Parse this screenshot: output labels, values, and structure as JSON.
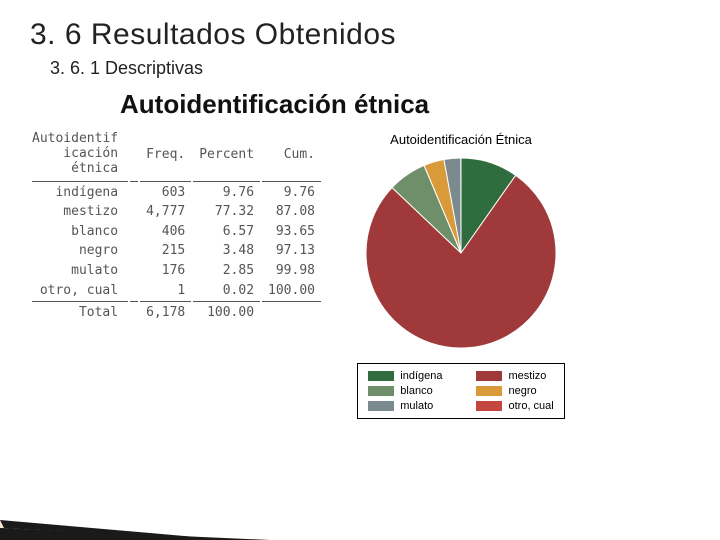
{
  "headings": {
    "h1": "3. 6 Resultados Obtenidos",
    "h2": "3. 6. 1 Descriptivas",
    "h3": "Autoidentificación étnica"
  },
  "table": {
    "var_label_lines": [
      "Autoidentif",
      "icación",
      "étnica"
    ],
    "col_headers": [
      "Freq.",
      "Percent",
      "Cum."
    ],
    "rows": [
      {
        "label": "indígena",
        "freq": "603",
        "pct": "9.76",
        "cum": "9.76"
      },
      {
        "label": "mestizo",
        "freq": "4,777",
        "pct": "77.32",
        "cum": "87.08"
      },
      {
        "label": "blanco",
        "freq": "406",
        "pct": "6.57",
        "cum": "93.65"
      },
      {
        "label": "negro",
        "freq": "215",
        "pct": "3.48",
        "cum": "97.13"
      },
      {
        "label": "mulato",
        "freq": "176",
        "pct": "2.85",
        "cum": "99.98"
      },
      {
        "label": "otro, cual",
        "freq": "1",
        "pct": "0.02",
        "cum": "100.00"
      }
    ],
    "total": {
      "label": "Total",
      "freq": "6,178",
      "pct": "100.00"
    }
  },
  "chart": {
    "title": "Autoidentificación Étnica",
    "type": "pie",
    "slices": [
      {
        "label": "indígena",
        "value": 9.76,
        "color": "#2f6c3e"
      },
      {
        "label": "mestizo",
        "value": 77.32,
        "color": "#a03a3a"
      },
      {
        "label": "blanco",
        "value": 6.57,
        "color": "#6f8f6a"
      },
      {
        "label": "negro",
        "value": 3.48,
        "color": "#d99a3a"
      },
      {
        "label": "mulato",
        "value": 2.85,
        "color": "#7a8a8f"
      },
      {
        "label": "otro, cual",
        "value": 0.02,
        "color": "#c5453f"
      }
    ],
    "stroke": "#ffffff",
    "background": "#ffffff"
  },
  "legend_order": [
    "indígena",
    "mestizo",
    "blanco",
    "negro",
    "mulato",
    "otro, cual"
  ],
  "decoration": {
    "stripes": [
      "#1a1a1a",
      "#f2e6cf",
      "#1a1a1a"
    ]
  }
}
